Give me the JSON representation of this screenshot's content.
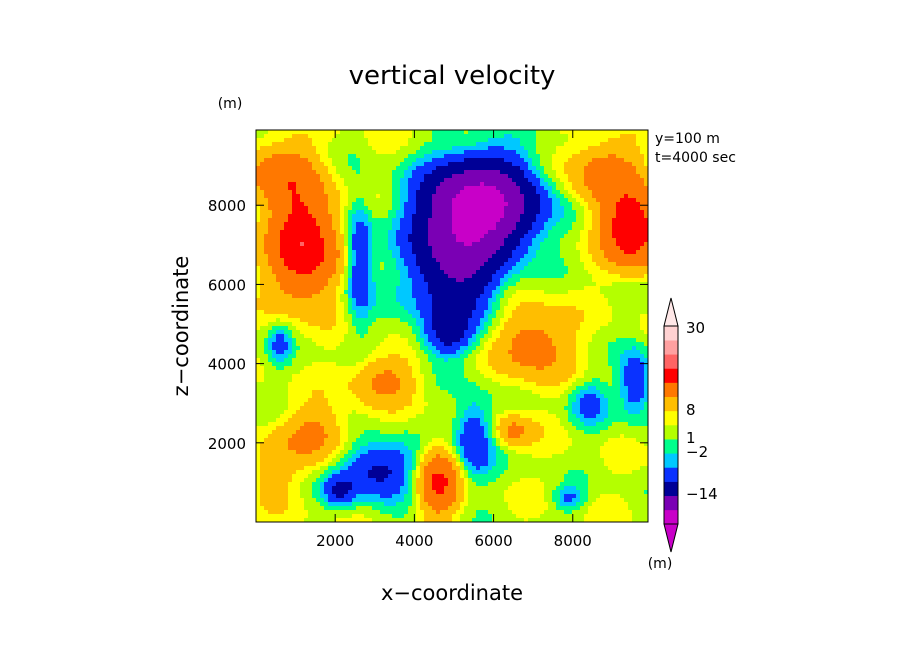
{
  "chart_data": {
    "type": "contour",
    "title": "vertical velocity",
    "xlabel": "x−coordinate",
    "ylabel": "z−coordinate",
    "x_unit": "(m)",
    "y_unit": "(m)",
    "xlim": [
      0,
      9900
    ],
    "ylim": [
      0,
      9900
    ],
    "xticks": [
      "2000",
      "4000",
      "6000",
      "8000"
    ],
    "yticks": [
      "2000",
      "4000",
      "6000",
      "8000"
    ],
    "annotations": [
      "y=100 m",
      "t=4000 sec"
    ],
    "colorbar": {
      "unit": "(m)",
      "tick_labels": [
        "30",
        "8",
        "1",
        "−2",
        "−14"
      ],
      "tick_values": [
        30,
        8,
        1,
        -2,
        -14
      ],
      "colors": [
        "#c800c8",
        "#7a00b4",
        "#000096",
        "#0a32ff",
        "#00c8ff",
        "#00ff8c",
        "#b4ff00",
        "#ffff00",
        "#ffbe00",
        "#ff7800",
        "#ff0000",
        "#ff6464",
        "#ffa0a0",
        "#ffd2d2"
      ],
      "over_color": "#ffe8e8",
      "under_color": "#c800c8"
    },
    "field": {
      "description_of_features": [],
      "blobs": [
        {
          "x": 1200,
          "z": 7000,
          "amp": 11,
          "sx": 800,
          "sz": 1300
        },
        {
          "x": 600,
          "z": 8800,
          "amp": 5,
          "sx": 900,
          "sz": 800
        },
        {
          "x": 9500,
          "z": 7400,
          "amp": 11,
          "sx": 700,
          "sz": 900
        },
        {
          "x": 8800,
          "z": 8800,
          "amp": 5,
          "sx": 900,
          "sz": 800
        },
        {
          "x": 5700,
          "z": 8000,
          "amp": -17,
          "sx": 1300,
          "sz": 1100
        },
        {
          "x": 5000,
          "z": 6500,
          "amp": -9,
          "sx": 1100,
          "sz": 1500
        },
        {
          "x": 4800,
          "z": 4700,
          "amp": -4,
          "sx": 600,
          "sz": 500
        },
        {
          "x": 2600,
          "z": 6600,
          "amp": -5,
          "sx": 350,
          "sz": 1500
        },
        {
          "x": 3100,
          "z": 1300,
          "amp": -6,
          "sx": 900,
          "sz": 700
        },
        {
          "x": 2100,
          "z": 800,
          "amp": -4,
          "sx": 400,
          "sz": 400
        },
        {
          "x": 5500,
          "z": 2100,
          "amp": -5,
          "sx": 500,
          "sz": 1000
        },
        {
          "x": 4600,
          "z": 1000,
          "amp": 8,
          "sx": 500,
          "sz": 800
        },
        {
          "x": 7000,
          "z": 4500,
          "amp": 5,
          "sx": 900,
          "sz": 900
        },
        {
          "x": 9600,
          "z": 3500,
          "amp": -5,
          "sx": 400,
          "sz": 800
        },
        {
          "x": 8400,
          "z": 3000,
          "amp": -3,
          "sx": 500,
          "sz": 600
        },
        {
          "x": 7900,
          "z": 600,
          "amp": -3,
          "sx": 400,
          "sz": 300
        },
        {
          "x": 600,
          "z": 4500,
          "amp": -3,
          "sx": 300,
          "sz": 500
        },
        {
          "x": 3200,
          "z": 3600,
          "amp": 4,
          "sx": 800,
          "sz": 600
        },
        {
          "x": 1500,
          "z": 2200,
          "amp": 4,
          "sx": 800,
          "sz": 700
        },
        {
          "x": 6500,
          "z": 2300,
          "amp": 4,
          "sx": 500,
          "sz": 400
        },
        {
          "x": 400,
          "z": 1300,
          "amp": 3,
          "sx": 500,
          "sz": 800
        }
      ]
    }
  }
}
